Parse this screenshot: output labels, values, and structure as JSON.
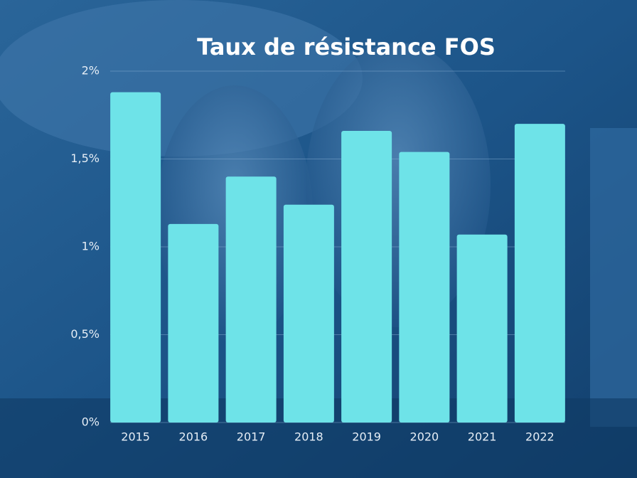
{
  "chart_data": {
    "type": "bar",
    "title": "Taux de résistance FOS",
    "categories": [
      "2015",
      "2016",
      "2017",
      "2018",
      "2019",
      "2020",
      "2021",
      "2022"
    ],
    "values": [
      1.88,
      1.13,
      1.4,
      1.24,
      1.66,
      1.54,
      1.07,
      1.7
    ],
    "color": "#6ee3e8",
    "ylim": [
      0,
      2
    ],
    "yticks": [
      {
        "value": 0,
        "label": "0%"
      },
      {
        "value": 0.5,
        "label": "0,5%"
      },
      {
        "value": 1,
        "label": "1%"
      },
      {
        "value": 1.5,
        "label": "1,5%"
      },
      {
        "value": 2,
        "label": "2%"
      }
    ],
    "grid": true
  }
}
